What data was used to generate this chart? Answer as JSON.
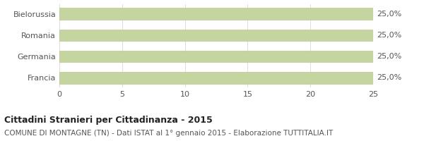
{
  "categories": [
    "Francia",
    "Germania",
    "Romania",
    "Bielorussia"
  ],
  "values": [
    25.0,
    25.0,
    25.0,
    25.0
  ],
  "bar_color": "#c5d5a0",
  "bar_edge_color": "#b8c990",
  "value_labels": [
    "25,0%",
    "25,0%",
    "25,0%",
    "25,0%"
  ],
  "xlim": [
    0,
    25
  ],
  "xticks": [
    0,
    5,
    10,
    15,
    20,
    25
  ],
  "title": "Cittadini Stranieri per Cittadinanza - 2015",
  "subtitle": "COMUNE DI MONTAGNE (TN) - Dati ISTAT al 1° gennaio 2015 - Elaborazione TUTTITALIA.IT",
  "title_fontsize": 9,
  "subtitle_fontsize": 7.5,
  "label_fontsize": 8,
  "tick_fontsize": 8,
  "background_color": "#ffffff",
  "grid_color": "#dddddd"
}
